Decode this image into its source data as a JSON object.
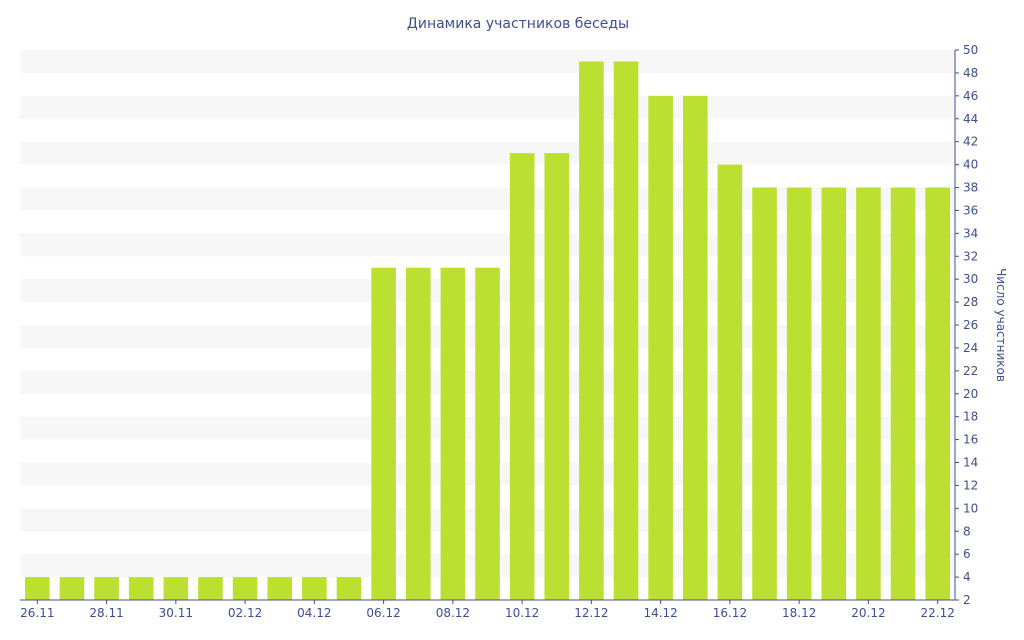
{
  "chart_data": {
    "type": "bar",
    "title": "Динамика участников беседы",
    "xlabel": "",
    "ylabel": "Число участников",
    "y_axis_position": "right",
    "ylim": [
      2,
      50
    ],
    "ytick_step": 2,
    "grid": "alternating-bands",
    "bar_color": "#bbe032",
    "band_color": "#f7f7f7",
    "text_color": "#3e4f8f",
    "categories": [
      "26.11",
      "27.11",
      "28.11",
      "29.11",
      "30.11",
      "01.12",
      "02.12",
      "03.12",
      "04.12",
      "05.12",
      "06.12",
      "07.12",
      "08.12",
      "09.12",
      "10.12",
      "11.12",
      "12.12",
      "13.12",
      "14.12",
      "15.12",
      "16.12",
      "17.12",
      "18.12",
      "19.12",
      "20.12",
      "21.12",
      "22.12"
    ],
    "x_tick_labels": [
      "26.11",
      "28.11",
      "30.11",
      "02.12",
      "04.12",
      "06.12",
      "08.12",
      "10.12",
      "12.12",
      "14.12",
      "16.12",
      "18.12",
      "20.12",
      "22.12"
    ],
    "values": [
      4,
      4,
      4,
      4,
      4,
      4,
      4,
      4,
      4,
      4,
      31,
      31,
      31,
      31,
      41,
      41,
      49,
      49,
      46,
      46,
      40,
      38,
      38,
      38,
      38,
      38,
      38
    ]
  }
}
